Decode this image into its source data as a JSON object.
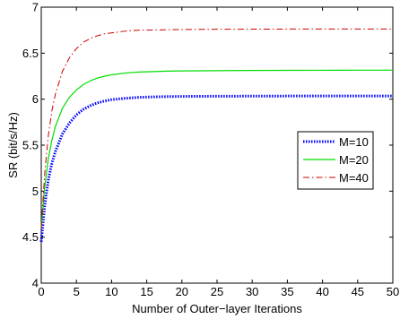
{
  "chart_data": {
    "type": "line",
    "title": "",
    "xlabel": "Number of Outer−layer Iterations",
    "ylabel": "SR (bit/s/Hz)",
    "xlim": [
      0,
      50
    ],
    "ylim": [
      4,
      7
    ],
    "xticks": [
      "0",
      "5",
      "10",
      "15",
      "20",
      "25",
      "30",
      "35",
      "40",
      "45",
      "50"
    ],
    "yticks": [
      "4",
      "4.5",
      "5",
      "5.5",
      "6",
      "6.5",
      "7"
    ],
    "grid": false,
    "legend_position": "right",
    "series": [
      {
        "name": "M=10",
        "color": "#0000ff",
        "style": "dotted",
        "x": [
          0,
          0.5,
          1,
          1.5,
          2,
          3,
          4,
          5,
          6,
          7,
          8,
          9,
          10,
          12,
          14,
          16,
          18,
          20,
          25,
          30,
          35,
          40,
          45,
          50
        ],
        "y": [
          4.45,
          4.85,
          5.12,
          5.3,
          5.43,
          5.62,
          5.74,
          5.83,
          5.89,
          5.93,
          5.96,
          5.98,
          5.995,
          6.01,
          6.02,
          6.025,
          6.028,
          6.03,
          6.032,
          6.033,
          6.034,
          6.034,
          6.035,
          6.035
        ]
      },
      {
        "name": "M=20",
        "color": "#00dd00",
        "style": "solid",
        "x": [
          0,
          0.5,
          1,
          1.5,
          2,
          3,
          4,
          5,
          6,
          7,
          8,
          9,
          10,
          12,
          14,
          16,
          18,
          20,
          25,
          30,
          35,
          40,
          45,
          50
        ],
        "y": [
          4.6,
          5.05,
          5.35,
          5.55,
          5.7,
          5.9,
          6.02,
          6.1,
          6.16,
          6.2,
          6.23,
          6.25,
          6.265,
          6.285,
          6.295,
          6.3,
          6.305,
          6.307,
          6.31,
          6.312,
          6.313,
          6.314,
          6.315,
          6.315
        ]
      },
      {
        "name": "M=40",
        "color": "#cc0000",
        "style": "dash-dot",
        "x": [
          0,
          0.5,
          1,
          1.5,
          2,
          3,
          4,
          5,
          6,
          7,
          8,
          9,
          10,
          12,
          14,
          16,
          18,
          20,
          25,
          30,
          35,
          40,
          45,
          50
        ],
        "y": [
          4.6,
          5.2,
          5.6,
          5.87,
          6.05,
          6.3,
          6.45,
          6.55,
          6.62,
          6.66,
          6.69,
          6.71,
          6.72,
          6.74,
          6.75,
          6.752,
          6.755,
          6.757,
          6.76,
          6.761,
          6.762,
          6.763,
          6.763,
          6.763
        ]
      }
    ]
  }
}
